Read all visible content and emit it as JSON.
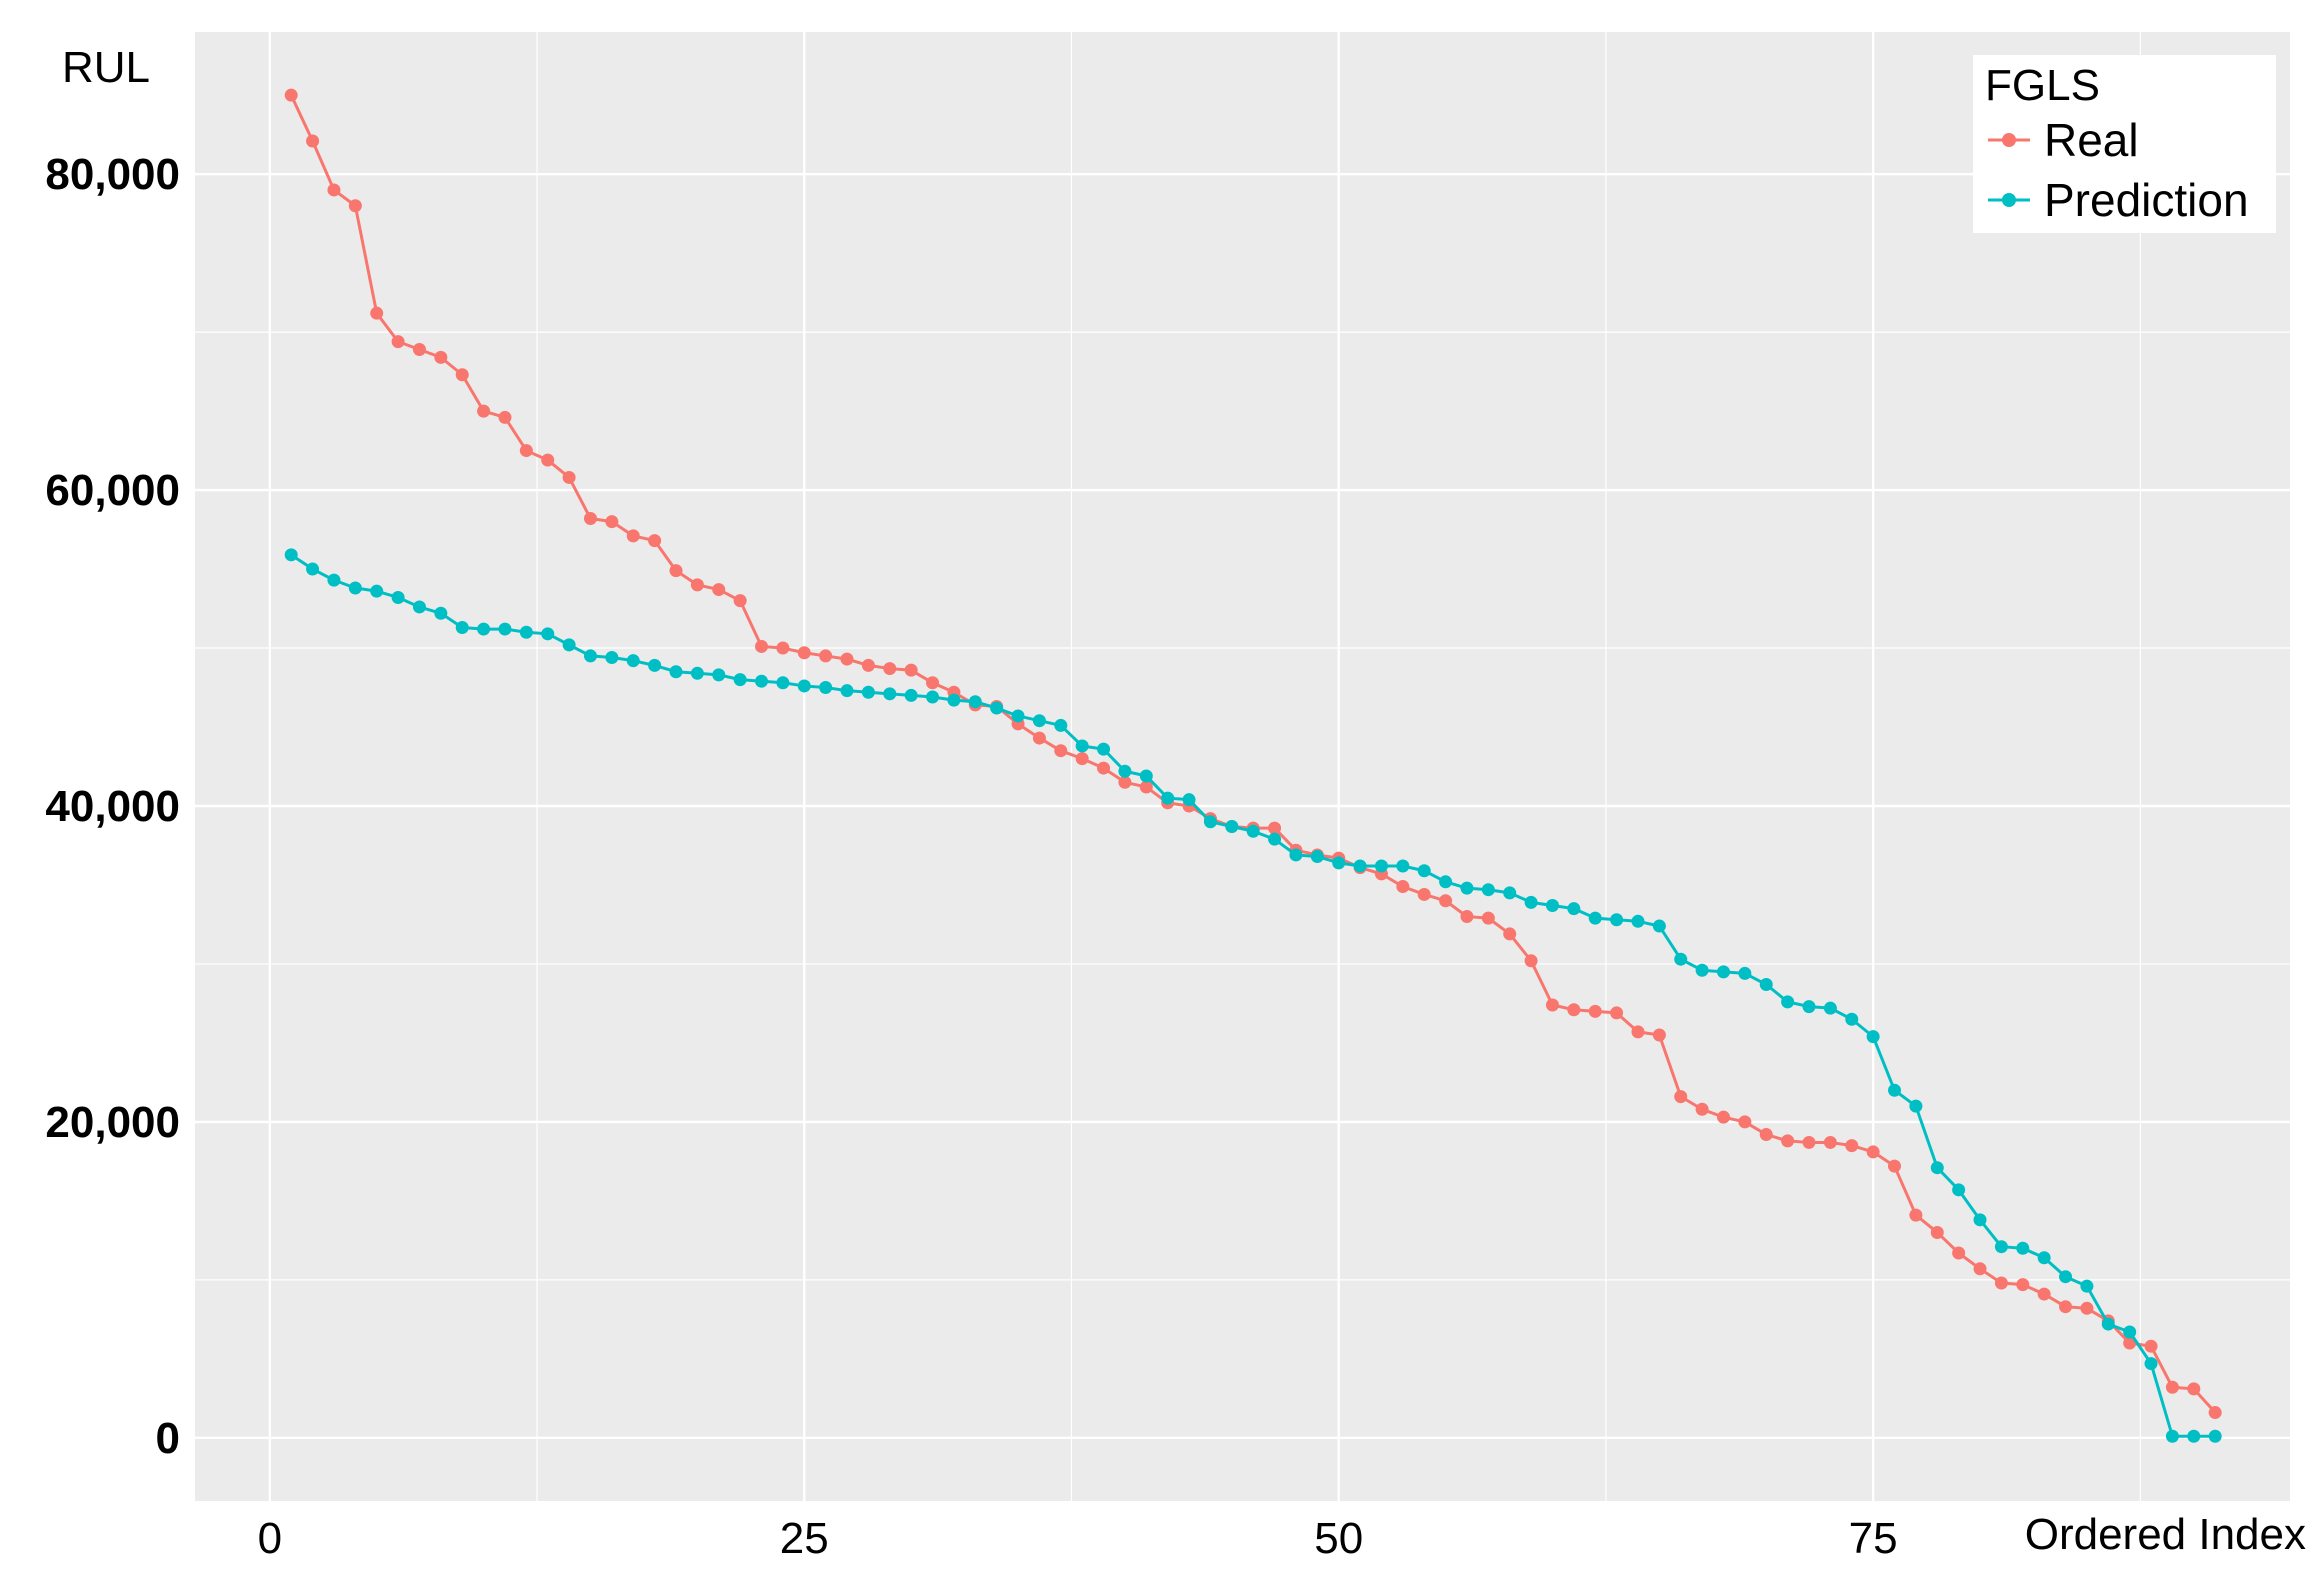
{
  "chart_data": {
    "type": "line",
    "ylabel": "RUL",
    "xlabel": "Ordered Index",
    "xlim": [
      -3.5,
      94.5
    ],
    "ylim": [
      -4000,
      89000
    ],
    "x_ticks": [
      0,
      25,
      50,
      75
    ],
    "x_tick_labels": [
      "0",
      "25",
      "50",
      "75"
    ],
    "y_ticks": [
      0,
      20000,
      40000,
      60000,
      80000
    ],
    "y_tick_labels": [
      "0",
      "20,000",
      "40,000",
      "60,000",
      "80,000"
    ],
    "grid": true,
    "legend": {
      "title": "FGLS",
      "placement": "top-right",
      "entries": [
        "Real",
        "Prediction"
      ]
    },
    "x": [
      1,
      2,
      3,
      4,
      5,
      6,
      7,
      8,
      9,
      10,
      11,
      12,
      13,
      14,
      15,
      16,
      17,
      18,
      19,
      20,
      21,
      22,
      23,
      24,
      25,
      26,
      27,
      28,
      29,
      30,
      31,
      32,
      33,
      34,
      35,
      36,
      37,
      38,
      39,
      40,
      41,
      42,
      43,
      44,
      45,
      46,
      47,
      48,
      49,
      50,
      51,
      52,
      53,
      54,
      55,
      56,
      57,
      58,
      59,
      60,
      61,
      62,
      63,
      64,
      65,
      66,
      67,
      68,
      69,
      70,
      71,
      72,
      73,
      74,
      75,
      76,
      77,
      78,
      79,
      80,
      81,
      82,
      83,
      84,
      85,
      86,
      87,
      88,
      89,
      90,
      91
    ],
    "series": [
      {
        "name": "Real",
        "color": "#F8766D",
        "values": [
          85000,
          82100,
          79000,
          78000,
          71200,
          69400,
          68900,
          68400,
          67300,
          65000,
          64600,
          62500,
          61900,
          60800,
          58200,
          58000,
          57100,
          56800,
          54900,
          54000,
          53700,
          53000,
          50100,
          50000,
          49700,
          49500,
          49300,
          48900,
          48700,
          48600,
          47800,
          47200,
          46400,
          46300,
          45200,
          44300,
          43500,
          43000,
          42400,
          41500,
          41200,
          40200,
          40000,
          39200,
          38700,
          38600,
          38600,
          37200,
          36900,
          36700,
          36100,
          35700,
          34900,
          34400,
          34000,
          33000,
          32900,
          31900,
          30200,
          27400,
          27100,
          27000,
          26900,
          25700,
          25500,
          21600,
          20800,
          20300,
          20000,
          19200,
          18800,
          18700,
          18700,
          18500,
          18100,
          17200,
          14100,
          13000,
          11700,
          10700,
          9800,
          9700,
          9100,
          8300,
          8200,
          7400,
          6000,
          5800,
          3200,
          3100,
          1600
        ]
      },
      {
        "name": "Prediction",
        "color": "#00BFC4",
        "values": [
          55900,
          55000,
          54300,
          53800,
          53600,
          53200,
          52600,
          52200,
          51300,
          51200,
          51200,
          51000,
          50900,
          50200,
          49500,
          49400,
          49200,
          48900,
          48500,
          48400,
          48300,
          48000,
          47900,
          47800,
          47600,
          47500,
          47300,
          47200,
          47100,
          47000,
          46900,
          46700,
          46600,
          46200,
          45700,
          45400,
          45100,
          43800,
          43600,
          42200,
          41900,
          40500,
          40400,
          39000,
          38700,
          38400,
          37900,
          36900,
          36800,
          36400,
          36200,
          36200,
          36200,
          35900,
          35200,
          34800,
          34700,
          34500,
          33900,
          33700,
          33500,
          32900,
          32800,
          32700,
          32400,
          30300,
          29600,
          29500,
          29400,
          28700,
          27600,
          27300,
          27200,
          26500,
          25400,
          22000,
          21000,
          17100,
          15700,
          13800,
          12100,
          12000,
          11400,
          10200,
          9600,
          7200,
          6700,
          4700,
          100,
          100,
          100
        ]
      }
    ]
  }
}
